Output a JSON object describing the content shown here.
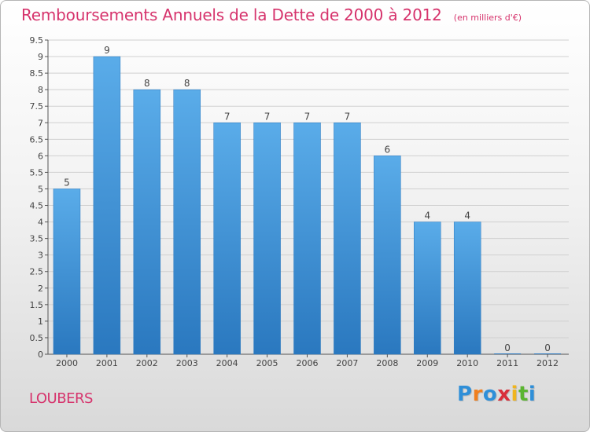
{
  "title": "Remboursements Annuels de la Dette de 2000 à 2012",
  "unit_label": "(en milliers d'€)",
  "commune": "LOUBERS",
  "brand": {
    "letters": [
      {
        "char": "P",
        "color": "#2f8fd8"
      },
      {
        "char": "r",
        "color": "#f07f1e"
      },
      {
        "char": "o",
        "color": "#2f8fd8"
      },
      {
        "char": "x",
        "color": "#d92f3a"
      },
      {
        "char": "i",
        "color": "#f0b51e"
      },
      {
        "char": "t",
        "color": "#5bb531"
      },
      {
        "char": "i",
        "color": "#2f8fd8"
      }
    ]
  },
  "colors": {
    "title": "#d6336c",
    "bar_top": "#5aace9",
    "bar_bottom": "#2a78bf",
    "grid": "#d0d0d0"
  },
  "chart_data": {
    "type": "bar",
    "categories": [
      "2000",
      "2001",
      "2002",
      "2003",
      "2004",
      "2005",
      "2006",
      "2007",
      "2008",
      "2009",
      "2010",
      "2011",
      "2012"
    ],
    "values": [
      5,
      9,
      8,
      8,
      7,
      7,
      7,
      7,
      6,
      4,
      4,
      0,
      0
    ],
    "data_labels": [
      "5",
      "9",
      "8",
      "8",
      "7",
      "7",
      "7",
      "7",
      "6",
      "4",
      "4",
      "0",
      "0"
    ],
    "y_ticks": [
      "0",
      "0.5",
      "1",
      "1.5",
      "2",
      "2.5",
      "3",
      "3.5",
      "4",
      "4.5",
      "5",
      "5.5",
      "6",
      "6.5",
      "7",
      "7.5",
      "8",
      "8.5",
      "9",
      "9.5"
    ],
    "ylim": [
      0,
      9.5
    ],
    "grid": true
  }
}
